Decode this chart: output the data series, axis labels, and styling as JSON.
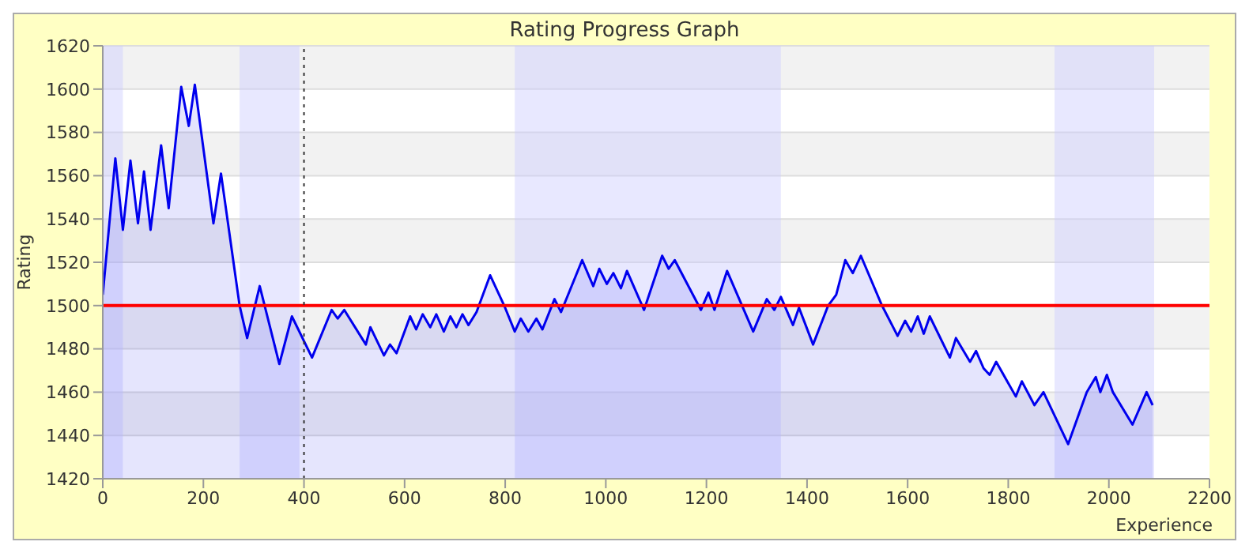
{
  "chart_data": {
    "type": "area",
    "title": "Rating Progress Graph",
    "xlabel": "Experience",
    "ylabel": "Rating",
    "x": [
      0,
      25,
      40,
      55,
      70,
      82,
      95,
      116,
      131,
      156,
      171,
      183,
      220,
      235,
      272,
      287,
      312,
      351,
      376,
      416,
      455,
      467,
      480,
      523,
      532,
      559,
      571,
      584,
      611,
      623,
      636,
      651,
      663,
      678,
      691,
      703,
      715,
      727,
      743,
      770,
      798,
      819,
      831,
      846,
      862,
      874,
      898,
      911,
      953,
      975,
      987,
      1002,
      1015,
      1030,
      1042,
      1076,
      1112,
      1125,
      1137,
      1189,
      1204,
      1216,
      1241,
      1293,
      1320,
      1335,
      1348,
      1372,
      1384,
      1412,
      1442,
      1458,
      1476,
      1491,
      1507,
      1549,
      1580,
      1595,
      1607,
      1620,
      1632,
      1644,
      1684,
      1696,
      1724,
      1736,
      1751,
      1763,
      1776,
      1815,
      1827,
      1852,
      1870,
      1919,
      1956,
      1974,
      1983,
      1996,
      2008,
      2047,
      2075,
      2087
    ],
    "series": [
      {
        "color": "#0000ee",
        "values": [
          1505,
          1568,
          1535,
          1567,
          1538,
          1562,
          1535,
          1574,
          1545,
          1601,
          1583,
          1602,
          1538,
          1561,
          1500,
          1485,
          1509,
          1473,
          1495,
          1476,
          1498,
          1494,
          1498,
          1482,
          1490,
          1477,
          1482,
          1478,
          1495,
          1489,
          1496,
          1490,
          1496,
          1488,
          1495,
          1490,
          1496,
          1491,
          1497,
          1514,
          1500,
          1488,
          1494,
          1488,
          1494,
          1489,
          1503,
          1497,
          1521,
          1509,
          1517,
          1510,
          1515,
          1508,
          1516,
          1498,
          1523,
          1517,
          1521,
          1498,
          1506,
          1498,
          1516,
          1488,
          1503,
          1498,
          1504,
          1491,
          1499,
          1482,
          1500,
          1505,
          1521,
          1515,
          1523,
          1500,
          1486,
          1493,
          1488,
          1495,
          1487,
          1495,
          1476,
          1485,
          1474,
          1479,
          1471,
          1468,
          1474,
          1458,
          1465,
          1454,
          1460,
          1436,
          1460,
          1467,
          1460,
          1468,
          1460,
          1445,
          1460,
          1454
        ]
      }
    ],
    "xlim": [
      0,
      2200
    ],
    "xticks": [
      0,
      200,
      400,
      600,
      800,
      1000,
      1200,
      1400,
      1600,
      1800,
      2000,
      2200
    ],
    "ylim": [
      1420,
      1620
    ],
    "yticks": [
      1420,
      1440,
      1460,
      1480,
      1500,
      1520,
      1540,
      1560,
      1580,
      1600,
      1620
    ],
    "grid": "y",
    "ref_lines": [
      {
        "axis": "y",
        "value": 1500,
        "color": "#ff0000",
        "line_style": "solid"
      },
      {
        "axis": "x",
        "value": 400,
        "color": "#333333",
        "line_style": "dotted"
      }
    ],
    "bands": [
      {
        "axis": "x",
        "from": 0,
        "to": 40,
        "color": "#ccccff"
      },
      {
        "axis": "x",
        "from": 272,
        "to": 391,
        "color": "#ccccff"
      },
      {
        "axis": "x",
        "from": 819,
        "to": 1348,
        "color": "#ccccff"
      },
      {
        "axis": "x",
        "from": 1892,
        "to": 2090,
        "color": "#ccccff"
      }
    ]
  }
}
